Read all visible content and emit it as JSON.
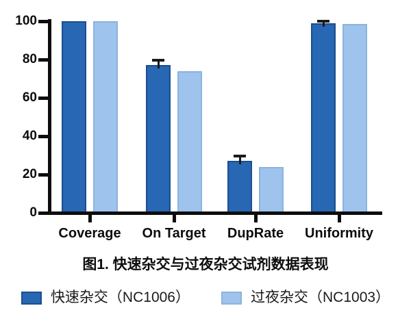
{
  "figure": {
    "title": "图1. 快速杂交与过夜杂交试剂数据表现"
  },
  "chart_data": {
    "type": "bar",
    "title": "图1. 快速杂交与过夜杂交试剂数据表现",
    "categories": [
      "Coverage",
      "On Target",
      "DupRate",
      "Uniformity"
    ],
    "series": [
      {
        "name": "快速杂交（NC1006）",
        "values": [
          100,
          77,
          27,
          99
        ],
        "errors": [
          0,
          2.5,
          2.5,
          1
        ],
        "fill_color": "#2767b3",
        "border_color": "#1c4e8d"
      },
      {
        "name": "过夜杂交（NC1003）",
        "values": [
          100,
          74,
          24,
          98.5
        ],
        "errors": [
          0,
          0,
          0,
          0
        ],
        "fill_color": "#9ec3ec",
        "border_color": "#8cb3de"
      }
    ],
    "xlabel": "",
    "ylabel": "",
    "ylim": [
      0,
      100
    ],
    "yticks": [
      0,
      20,
      40,
      60,
      80,
      100
    ],
    "grid": false,
    "legend_position": "bottom",
    "error_bar_color": "#1a1a1a",
    "axis_color": "#0d0d0d"
  }
}
